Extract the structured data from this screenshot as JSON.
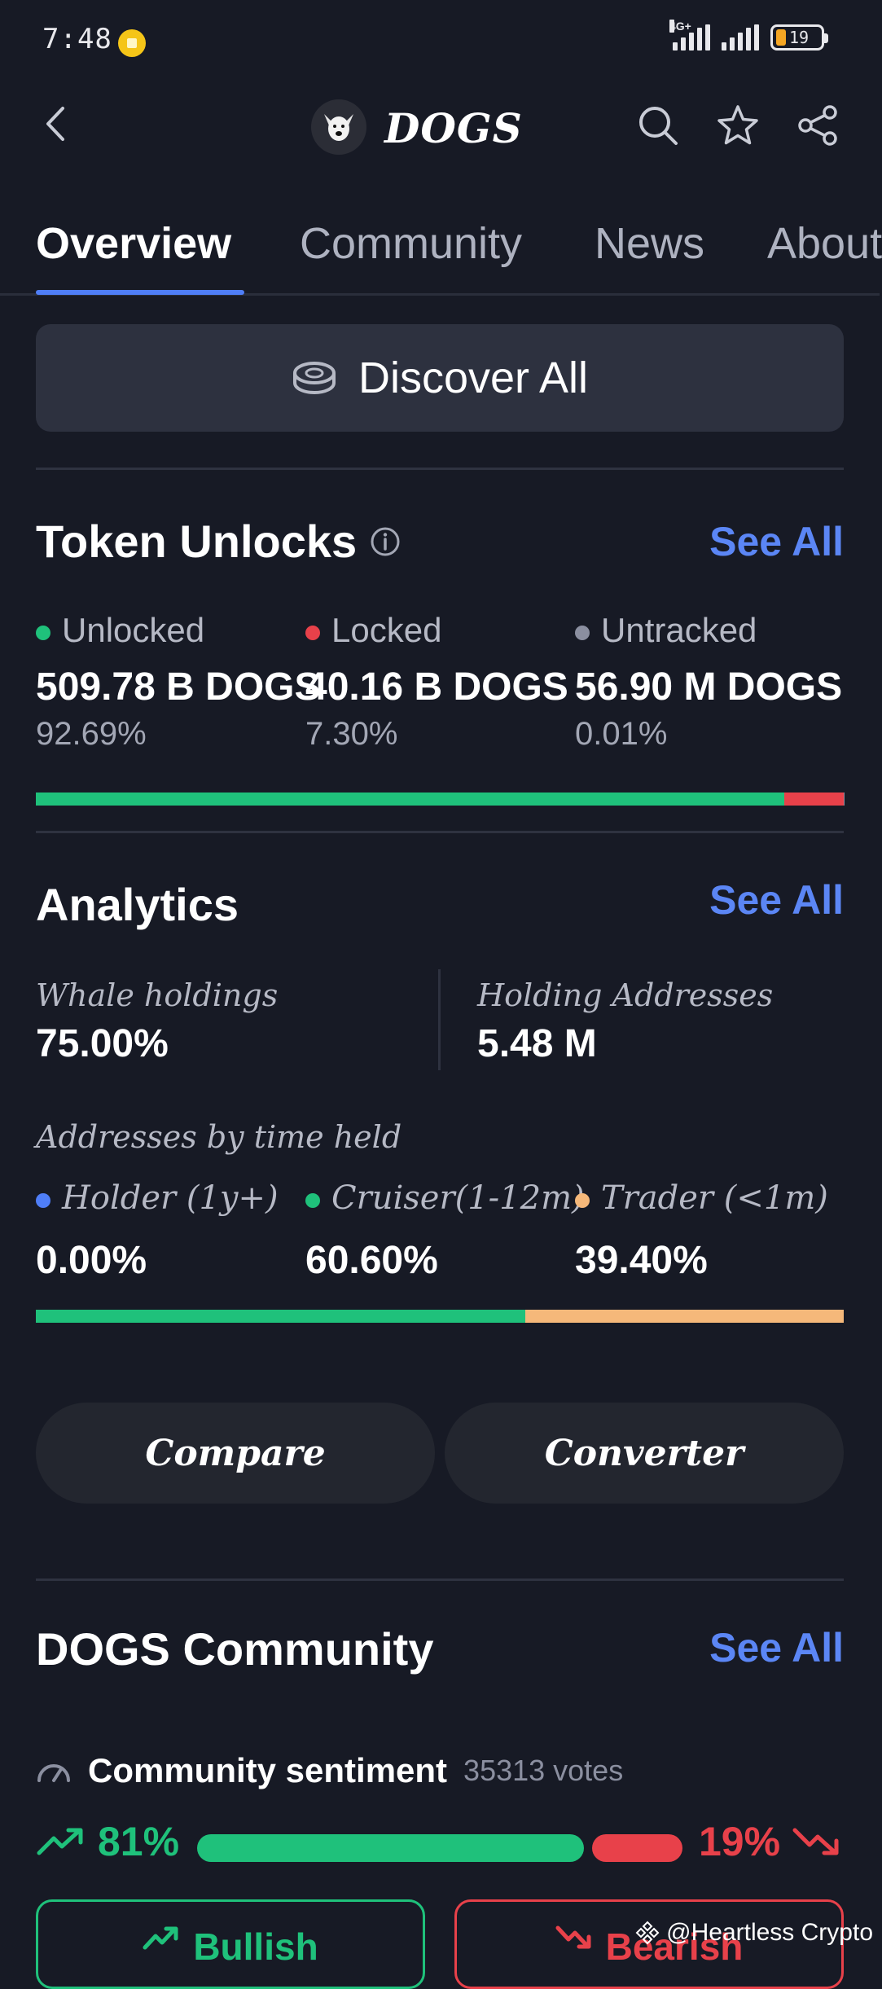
{
  "status_bar": {
    "time": "7:48",
    "network": "4G+",
    "battery": "19"
  },
  "header": {
    "title": "DOGS",
    "icons": [
      "back-icon",
      "search-icon",
      "star-icon",
      "share-icon"
    ]
  },
  "tabs": [
    {
      "label": "Overview",
      "active": true
    },
    {
      "label": "Community",
      "active": false
    },
    {
      "label": "News",
      "active": false
    },
    {
      "label": "About",
      "active": false
    }
  ],
  "discover": {
    "label": "Discover All"
  },
  "token_unlocks": {
    "title": "Token Unlocks",
    "see_all": "See All",
    "items": [
      {
        "label": "Unlocked",
        "value": "509.78 B DOGS",
        "pct": "92.69%",
        "color": "#1fc17b",
        "share": 92.69
      },
      {
        "label": "Locked",
        "value": "40.16 B DOGS",
        "pct": "7.30%",
        "color": "#e8414a",
        "share": 7.3
      },
      {
        "label": "Untracked",
        "value": "56.90 M DOGS",
        "pct": "0.01%",
        "color": "#8b8fa0",
        "share": 0.01
      }
    ]
  },
  "analytics": {
    "title": "Analytics",
    "see_all": "See All",
    "whale_label": "Whale holdings",
    "whale_value": "75.00%",
    "holding_label": "Holding Addresses",
    "holding_value": "5.48 M",
    "time_held_label": "Addresses by time held",
    "groups": [
      {
        "label": "Holder (1y+)",
        "pct": "0.00%",
        "color": "#4f7ef7",
        "share": 0
      },
      {
        "label": "Cruiser(1-12m)",
        "pct": "60.60%",
        "color": "#1fc17b",
        "share": 60.6
      },
      {
        "label": "Trader (<1m)",
        "pct": "39.40%",
        "color": "#f5b87a",
        "share": 39.4
      }
    ]
  },
  "actions": {
    "compare": "Compare",
    "converter": "Converter"
  },
  "community": {
    "title": "DOGS Community",
    "see_all": "See All",
    "sentiment_label": "Community sentiment",
    "votes": "35313 votes",
    "bullish_pct": "81%",
    "bearish_pct": "19%",
    "bullish_share": 81,
    "bearish_share": 19,
    "bullish_label": "Bullish",
    "bearish_label": "Bearish",
    "bull_color": "#1fc17b",
    "bear_color": "#e8414a"
  },
  "watermark": "@Heartless Crypto"
}
